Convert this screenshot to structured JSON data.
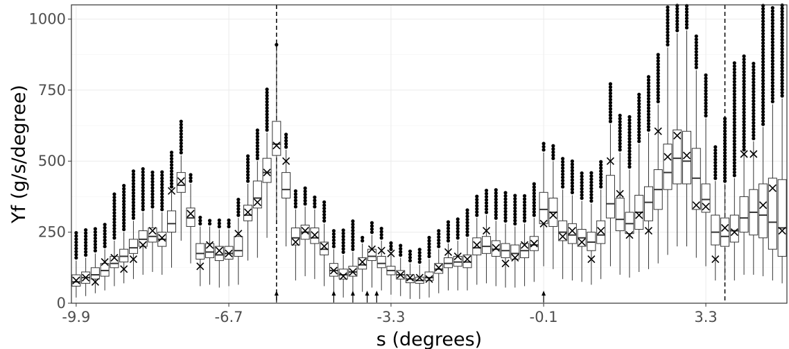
{
  "chart_data": {
    "type": "box",
    "xlabel": "s (degrees)",
    "ylabel": "Yf (g/s/degree)",
    "xlim": [
      -10.0,
      5.0
    ],
    "ylim": [
      0,
      1050
    ],
    "x_ticks": [
      -9.9,
      -6.7,
      -3.3,
      -0.1,
      3.3
    ],
    "x_tick_labels": [
      "-9.9",
      "-6.7",
      "-3.3",
      "-0.1",
      "3.3"
    ],
    "y_ticks": [
      0,
      250,
      500,
      750,
      1000
    ],
    "y_tick_labels": [
      "0",
      "250",
      "500",
      "750",
      "1000"
    ],
    "grid": true,
    "vlines_dashed": [
      -5.7,
      3.7
    ],
    "arrows_at_axis": [
      -5.7,
      -4.5,
      -4.1,
      -3.8,
      -3.6,
      -0.1
    ],
    "box_positions": [
      -9.9,
      -9.7,
      -9.5,
      -9.3,
      -9.1,
      -8.9,
      -8.7,
      -8.5,
      -8.3,
      -8.1,
      -7.9,
      -7.7,
      -7.5,
      -7.3,
      -7.1,
      -6.9,
      -6.7,
      -6.5,
      -6.3,
      -6.1,
      -5.9,
      -5.7,
      -5.5,
      -5.3,
      -5.1,
      -4.9,
      -4.7,
      -4.5,
      -4.3,
      -4.1,
      -3.9,
      -3.7,
      -3.5,
      -3.3,
      -3.1,
      -2.9,
      -2.7,
      -2.5,
      -2.3,
      -2.1,
      -1.9,
      -1.7,
      -1.5,
      -1.3,
      -1.1,
      -0.9,
      -0.7,
      -0.5,
      -0.3,
      -0.1,
      0.1,
      0.3,
      0.5,
      0.7,
      0.9,
      1.1,
      1.3,
      1.5,
      1.7,
      1.9,
      2.1,
      2.3,
      2.5,
      2.7,
      2.9,
      3.1,
      3.3,
      3.5,
      3.7,
      3.9,
      4.1,
      4.3,
      4.5,
      4.7,
      4.9
    ],
    "median": [
      75,
      90,
      100,
      115,
      140,
      165,
      195,
      225,
      235,
      225,
      280,
      415,
      300,
      175,
      180,
      170,
      175,
      185,
      310,
      370,
      460,
      560,
      400,
      230,
      250,
      230,
      190,
      115,
      100,
      110,
      135,
      165,
      140,
      115,
      100,
      85,
      80,
      90,
      120,
      140,
      145,
      145,
      195,
      200,
      190,
      185,
      175,
      185,
      205,
      330,
      320,
      250,
      240,
      230,
      215,
      240,
      350,
      295,
      280,
      320,
      355,
      400,
      460,
      510,
      500,
      440,
      365,
      250,
      235,
      255,
      300,
      320,
      310,
      285,
      265
    ],
    "q1": [
      60,
      70,
      85,
      95,
      125,
      145,
      175,
      200,
      215,
      200,
      250,
      390,
      270,
      155,
      160,
      150,
      155,
      165,
      290,
      335,
      425,
      520,
      370,
      205,
      225,
      210,
      170,
      95,
      85,
      95,
      120,
      150,
      125,
      100,
      85,
      72,
      70,
      80,
      105,
      125,
      130,
      125,
      170,
      175,
      165,
      160,
      155,
      160,
      185,
      280,
      270,
      220,
      210,
      200,
      185,
      210,
      300,
      255,
      245,
      260,
      290,
      330,
      400,
      420,
      420,
      330,
      320,
      205,
      200,
      215,
      250,
      240,
      230,
      190,
      165
    ],
    "q3": [
      100,
      110,
      125,
      140,
      165,
      190,
      225,
      255,
      265,
      250,
      325,
      460,
      335,
      210,
      210,
      200,
      200,
      235,
      345,
      430,
      510,
      640,
      460,
      265,
      275,
      265,
      215,
      140,
      120,
      130,
      160,
      190,
      165,
      130,
      115,
      100,
      92,
      110,
      140,
      160,
      165,
      170,
      230,
      235,
      220,
      210,
      205,
      210,
      235,
      390,
      370,
      290,
      280,
      260,
      250,
      290,
      450,
      370,
      320,
      380,
      410,
      470,
      560,
      610,
      605,
      545,
      420,
      310,
      300,
      310,
      375,
      400,
      420,
      440,
      435
    ],
    "whisker_low": [
      20,
      25,
      35,
      45,
      60,
      70,
      85,
      100,
      110,
      100,
      125,
      220,
      140,
      60,
      65,
      55,
      60,
      65,
      150,
      160,
      230,
      290,
      200,
      80,
      95,
      85,
      60,
      25,
      20,
      25,
      40,
      55,
      45,
      30,
      25,
      15,
      15,
      20,
      35,
      45,
      45,
      45,
      65,
      70,
      60,
      55,
      55,
      60,
      75,
      130,
      120,
      85,
      80,
      75,
      65,
      85,
      130,
      100,
      90,
      110,
      120,
      140,
      170,
      200,
      200,
      160,
      130,
      80,
      80,
      80,
      100,
      100,
      95,
      80,
      70
    ],
    "whisker_high": [
      150,
      160,
      175,
      190,
      220,
      250,
      290,
      320,
      330,
      320,
      400,
      520,
      420,
      270,
      270,
      260,
      260,
      300,
      420,
      500,
      600,
      900,
      540,
      330,
      340,
      330,
      280,
      190,
      170,
      180,
      210,
      240,
      220,
      180,
      160,
      140,
      135,
      155,
      190,
      210,
      220,
      230,
      300,
      310,
      290,
      280,
      270,
      280,
      300,
      530,
      500,
      400,
      380,
      360,
      350,
      400,
      630,
      530,
      470,
      560,
      600,
      700,
      900,
      950,
      960,
      820,
      650,
      430,
      420,
      440,
      530,
      570,
      620,
      700,
      720
    ],
    "outlier_top": [
      250,
      260,
      270,
      285,
      390,
      420,
      465,
      480,
      470,
      470,
      540,
      640,
      460,
      310,
      300,
      300,
      300,
      370,
      520,
      610,
      760,
      915,
      600,
      400,
      410,
      380,
      360,
      260,
      260,
      290,
      240,
      290,
      270,
      220,
      210,
      190,
      190,
      240,
      265,
      290,
      300,
      330,
      380,
      400,
      400,
      390,
      380,
      385,
      420,
      565,
      555,
      510,
      500,
      465,
      460,
      500,
      780,
      670,
      660,
      740,
      800,
      880,
      1050,
      1050,
      1050,
      950,
      810,
      560,
      650,
      850,
      880,
      850,
      1050,
      1050,
      1050
    ],
    "mean": [
      80,
      90,
      75,
      145,
      160,
      120,
      155,
      205,
      255,
      230,
      395,
      430,
      315,
      130,
      205,
      185,
      175,
      245,
      320,
      355,
      460,
      555,
      500,
      215,
      255,
      240,
      200,
      115,
      95,
      110,
      145,
      190,
      185,
      175,
      100,
      90,
      90,
      85,
      125,
      180,
      165,
      155,
      205,
      255,
      195,
      140,
      160,
      205,
      210,
      280,
      310,
      235,
      255,
      215,
      155,
      255,
      500,
      385,
      240,
      310,
      255,
      605,
      515,
      590,
      520,
      345,
      340,
      155,
      265,
      250,
      525,
      525,
      345,
      405,
      255
    ]
  }
}
